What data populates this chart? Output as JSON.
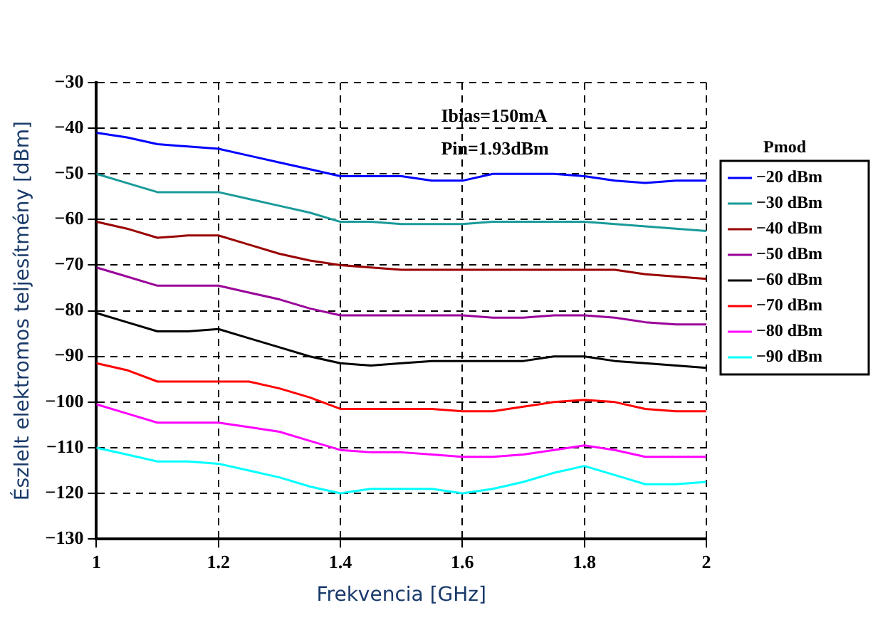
{
  "chart_data": {
    "type": "line",
    "xlabel": "Frekvencia [GHz]",
    "ylabel": "Észlelt elektromos teljesítmény [dBm]",
    "legend_title": "Pmod",
    "annotations": [
      "Ibias=150mA",
      "Pin=1.93dBm"
    ],
    "x": [
      1,
      1.05,
      1.1,
      1.15,
      1.2,
      1.25,
      1.3,
      1.35,
      1.4,
      1.45,
      1.5,
      1.55,
      1.6,
      1.65,
      1.7,
      1.75,
      1.8,
      1.85,
      1.9,
      1.95,
      2
    ],
    "xlim": [
      1,
      2
    ],
    "xticks": [
      1,
      1.2,
      1.4,
      1.6,
      1.8,
      2
    ],
    "ylim": [
      -130,
      -30
    ],
    "yticks": [
      -130,
      -120,
      -110,
      -100,
      -90,
      -80,
      -70,
      -60,
      -50,
      -40,
      -30
    ],
    "grid": true,
    "legend": "right",
    "marker": "none",
    "line_style": "solid",
    "series": [
      {
        "name": "−20 dBm",
        "color": "#0000ff",
        "values": [
          -41,
          -42,
          -43.5,
          -44,
          -44.5,
          -46,
          -47.5,
          -49,
          -50.5,
          -50.5,
          -50.5,
          -51.5,
          -51.5,
          -50,
          -50,
          -50,
          -50.5,
          -51.5,
          -52,
          -51.5,
          -51.5
        ]
      },
      {
        "name": "−30 dBm",
        "color": "#1a9a9a",
        "values": [
          -50,
          -52,
          -54,
          -54,
          -54,
          -55.5,
          -57,
          -58.5,
          -60.5,
          -60.5,
          -61,
          -61,
          -61,
          -60.5,
          -60.5,
          -60.5,
          -60.5,
          -61,
          -61.5,
          -62,
          -62.5
        ]
      },
      {
        "name": "−40 dBm",
        "color": "#990000",
        "values": [
          -60.5,
          -62,
          -64,
          -63.5,
          -63.5,
          -65.5,
          -67.5,
          -69,
          -70,
          -70.5,
          -71,
          -71,
          -71,
          -71,
          -71,
          -71,
          -71,
          -71,
          -72,
          -72.5,
          -73
        ]
      },
      {
        "name": "−50 dBm",
        "color": "#990099",
        "values": [
          -70.5,
          -72.5,
          -74.5,
          -74.5,
          -74.5,
          -76,
          -77.5,
          -79.5,
          -81,
          -81,
          -81,
          -81,
          -81,
          -81.5,
          -81.5,
          -81,
          -81,
          -81.5,
          -82.5,
          -83,
          -83
        ]
      },
      {
        "name": "−60 dBm",
        "color": "#000000",
        "values": [
          -80.5,
          -82.5,
          -84.5,
          -84.5,
          -84,
          -86,
          -88,
          -90,
          -91.5,
          -92,
          -91.5,
          -91,
          -91,
          -91,
          -91,
          -90,
          -90,
          -91,
          -91.5,
          -92,
          -92.5
        ]
      },
      {
        "name": "−70 dBm",
        "color": "#ff0000",
        "values": [
          -91.5,
          -93,
          -95.5,
          -95.5,
          -95.5,
          -95.5,
          -97,
          -99,
          -101.5,
          -101.5,
          -101.5,
          -101.5,
          -102,
          -102,
          -101,
          -100,
          -99.5,
          -100,
          -101.5,
          -102,
          -102
        ]
      },
      {
        "name": "−80 dBm",
        "color": "#ff00ff",
        "values": [
          -100.5,
          -102.5,
          -104.5,
          -104.5,
          -104.5,
          -105.5,
          -106.5,
          -108.5,
          -110.5,
          -111,
          -111,
          -111.5,
          -112,
          -112,
          -111.5,
          -110.5,
          -109.5,
          -110.5,
          -112,
          -112,
          -112
        ]
      },
      {
        "name": "−90 dBm",
        "color": "#00ffff",
        "values": [
          -110,
          -111.5,
          -113,
          -113,
          -113.5,
          -115,
          -116.5,
          -118.5,
          -120,
          -119,
          -119,
          -119,
          -120,
          -119,
          -117.5,
          -115.5,
          -114,
          -116,
          -118,
          -118,
          -117.5
        ]
      }
    ]
  }
}
